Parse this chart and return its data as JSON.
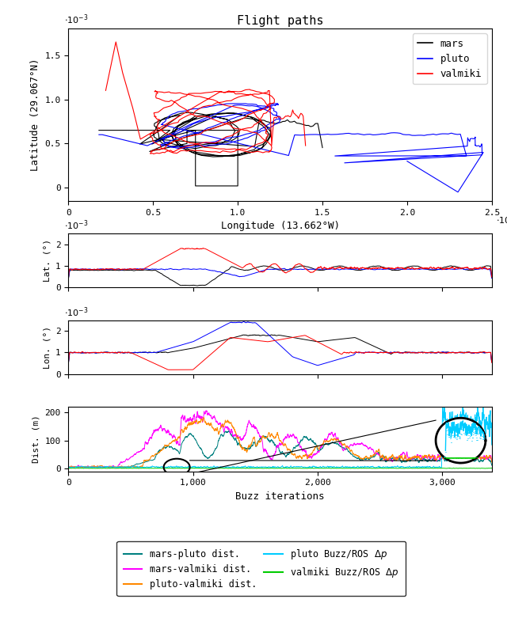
{
  "title": "Flight paths",
  "map_xlabel": "Longitude (13.662°W)",
  "map_ylabel": "Latitude (29.067°N)",
  "lat_ylabel": "Lat. (°)",
  "lon_ylabel": "Lon. (°)",
  "dist_ylabel": "Dist. (m)",
  "buzz_xlabel": "Buzz iterations",
  "colors": {
    "mars": "#000000",
    "pluto": "#0000ff",
    "valmiki": "#ff0000",
    "mars_pluto": "#008080",
    "mars_valmiki": "#ff00ff",
    "pluto_valmiki": "#ff8800",
    "pluto_buzz": "#00ccff",
    "valmiki_buzz": "#00cc00"
  },
  "map_xlim": [
    0,
    0.0025
  ],
  "map_ylim": [
    -0.00015,
    0.0018
  ],
  "lat_ylim": [
    0,
    0.0025
  ],
  "lon_ylim": [
    0,
    0.0025
  ],
  "dist_ylim": [
    -10,
    220
  ],
  "buzz_xlim": [
    0,
    3400
  ]
}
